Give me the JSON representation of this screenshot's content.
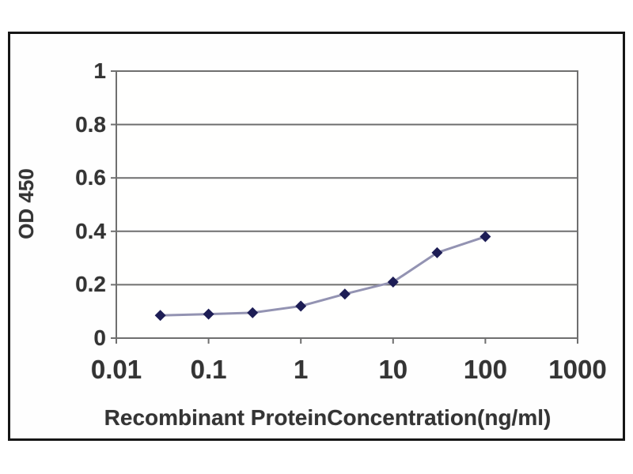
{
  "figure": {
    "background": "#ffffff",
    "frame_border_color": "#161616",
    "plot_background": "#fffffe"
  },
  "chart_data": {
    "type": "line",
    "title": "",
    "xlabel": "Recombinant ProteinConcentration(ng/ml)",
    "ylabel": "OD 450",
    "x_scale": "log",
    "y_scale": "linear",
    "xlim": [
      0.01,
      1000
    ],
    "ylim": [
      0,
      1
    ],
    "x_ticks": [
      0.01,
      0.1,
      1,
      10,
      100,
      1000
    ],
    "x_tick_labels": [
      "0.01",
      "0.1",
      "1",
      "10",
      "100",
      "1000"
    ],
    "y_ticks": [
      0,
      0.2,
      0.4,
      0.6,
      0.8,
      1
    ],
    "y_tick_labels": [
      "0",
      "0.2",
      "0.4",
      "0.6",
      "0.8",
      "1"
    ],
    "grid": "horizontal",
    "legend_position": "none",
    "series": [
      {
        "name": "OD 450",
        "marker": "diamond",
        "x": [
          0.03,
          0.1,
          0.3,
          1,
          3,
          10,
          30,
          100
        ],
        "y": [
          0.085,
          0.09,
          0.095,
          0.12,
          0.165,
          0.21,
          0.32,
          0.38
        ]
      }
    ],
    "colors": {
      "line": "#9393b2",
      "marker": "#1d1d55",
      "gridline": "#6f6f6f",
      "axis_frame": "#6f6f6f",
      "tick_text": "#343434"
    }
  }
}
